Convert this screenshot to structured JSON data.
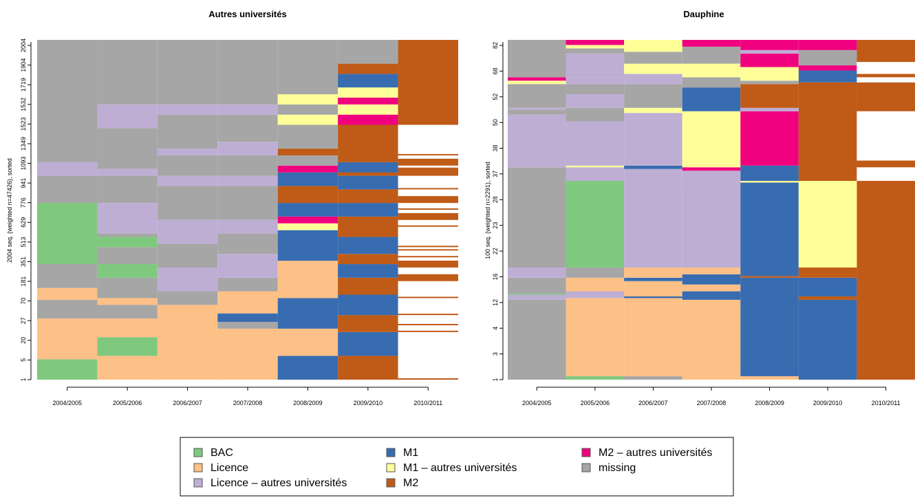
{
  "chart_data": [
    {
      "type": "sequence_index_plot",
      "title": "Autres universités",
      "ylabel": "2004 seq. (weighted n=47426), sorted",
      "xlabel": "",
      "x": [
        "2004/2005",
        "2005/2006",
        "2006/2007",
        "2007/2008",
        "2008/2009",
        "2009/2010",
        "2010/2011"
      ],
      "y_ticks": [
        1,
        5,
        20,
        27,
        70,
        181,
        351,
        513,
        629,
        776,
        941,
        1093,
        1349,
        1523,
        1532,
        1719,
        1904,
        2004
      ],
      "columns": [
        [
          [
            "BAC",
            0,
            0.06
          ],
          [
            "Licence",
            0,
            0.18
          ],
          [
            "missing",
            0,
            0.235
          ],
          [
            "Licence",
            0,
            0.27
          ],
          [
            "missing",
            0,
            0.4
          ],
          [
            "BAC",
            0,
            0.425
          ],
          [
            "missing",
            0,
            0.44
          ],
          [
            "BAC",
            0,
            0.46
          ],
          [
            "missing",
            0,
            0.52
          ],
          [
            "BAC",
            0,
            0.34
          ],
          [
            "missing",
            0,
            0.6
          ],
          [
            "Licence - autres universités",
            0,
            0.64
          ],
          [
            "missing",
            0,
            1
          ]
        ],
        [
          [
            "Licence",
            0,
            0.07
          ],
          [
            "BAC",
            0,
            0.125
          ],
          [
            "Licence",
            0,
            0.18
          ],
          [
            "missing",
            0,
            0.22
          ],
          [
            "Licence",
            0,
            0.24
          ],
          [
            "missing",
            0,
            0.3
          ],
          [
            "BAC",
            0,
            0.34
          ],
          [
            "missing",
            0,
            0.39
          ],
          [
            "BAC",
            0,
            0.42
          ],
          [
            "missing",
            0,
            0.43
          ],
          [
            "Licence - autres universités",
            0,
            0.52
          ],
          [
            "missing",
            0,
            0.6
          ],
          [
            "Licence - autres universités",
            0,
            0.62
          ],
          [
            "missing",
            0,
            0.74
          ],
          [
            "Licence - autres universités",
            0,
            0.81
          ],
          [
            "missing",
            0,
            1
          ]
        ],
        [
          [
            "Licence",
            0,
            0.22
          ],
          [
            "missing",
            0,
            0.26
          ],
          [
            "Licence - autres universités",
            0,
            0.33
          ],
          [
            "missing",
            0,
            0.4
          ],
          [
            "Licence - autres universités",
            0,
            0.47
          ],
          [
            "missing",
            0,
            0.57
          ],
          [
            "Licence - autres universités",
            0,
            0.6
          ],
          [
            "missing",
            0,
            0.66
          ],
          [
            "Licence - autres universités",
            0,
            0.68
          ],
          [
            "missing",
            0,
            0.78
          ],
          [
            "Licence - autres universités",
            0,
            0.81
          ],
          [
            "missing",
            0,
            1
          ]
        ],
        [
          [
            "Licence",
            0,
            0.15
          ],
          [
            "missing",
            0,
            0.17
          ],
          [
            "M1",
            0,
            0.195
          ],
          [
            "Licence",
            0,
            0.26
          ],
          [
            "missing",
            0,
            0.3
          ],
          [
            "Licence - autres universités",
            0,
            0.37
          ],
          [
            "missing",
            0,
            0.43
          ],
          [
            "Licence - autres universités",
            0,
            0.47
          ],
          [
            "missing",
            0,
            0.57
          ],
          [
            "Licence - autres universités",
            0,
            0.6
          ],
          [
            "missing",
            0,
            0.66
          ],
          [
            "Licence - autres universités",
            0,
            0.7
          ],
          [
            "missing",
            0,
            0.78
          ],
          [
            "Licence - autres universités",
            0,
            0.81
          ],
          [
            "missing",
            0,
            1
          ]
        ],
        [
          [
            "M1",
            0,
            0.07
          ],
          [
            "Licence",
            0,
            0.15
          ],
          [
            "M1",
            0,
            0.24
          ],
          [
            "Licence",
            0,
            0.35
          ],
          [
            "M1",
            0,
            0.44
          ],
          [
            "M1 - autres universités",
            0,
            0.46
          ],
          [
            "M2 - autres universités",
            0,
            0.48
          ],
          [
            "M1",
            0,
            0.52
          ],
          [
            "M2",
            0,
            0.57
          ],
          [
            "M1",
            0,
            0.61
          ],
          [
            "M2 - autres universités",
            0,
            0.63
          ],
          [
            "missing",
            0,
            0.66
          ],
          [
            "M2",
            0,
            0.68
          ],
          [
            "missing",
            0,
            0.75
          ],
          [
            "M1 - autres universités",
            0,
            0.78
          ],
          [
            "missing",
            0,
            0.81
          ],
          [
            "M1 - autres universités",
            0,
            0.84
          ],
          [
            "missing",
            0,
            1
          ]
        ],
        [
          [
            "M2",
            0,
            0.07
          ],
          [
            "M1",
            0,
            0.14
          ],
          [
            "M2",
            0,
            0.19
          ],
          [
            "M1",
            0,
            0.25
          ],
          [
            "M2",
            0,
            0.3
          ],
          [
            "M1",
            0,
            0.34
          ],
          [
            "M2",
            0,
            0.37
          ],
          [
            "M1",
            0,
            0.42
          ],
          [
            "M2",
            0,
            0.48
          ],
          [
            "M1",
            0,
            0.52
          ],
          [
            "M2",
            0,
            0.56
          ],
          [
            "M1",
            0,
            0.6
          ],
          [
            "M2",
            0,
            0.64
          ],
          [
            "M1",
            0,
            0.61
          ],
          [
            "M2",
            0,
            0.75
          ],
          [
            "M2 - autres universités",
            0,
            0.78
          ],
          [
            "M1 - autres universités",
            0,
            0.81
          ],
          [
            "M2 - autres universités",
            0,
            0.83
          ],
          [
            "M1 - autres universités",
            0,
            0.86
          ],
          [
            "M1",
            0,
            0.9
          ],
          [
            "M2",
            0,
            0.93
          ],
          [
            "missing",
            0,
            1
          ]
        ]
      ],
      "col7": {
        "fill": "M2",
        "top": 0.75,
        "stripes": [
          0.0,
          0.14,
          0.16,
          0.19,
          0.24,
          0.29,
          0.33,
          0.34,
          0.36,
          0.38,
          0.39,
          0.45,
          0.47,
          0.48,
          0.5,
          0.52,
          0.56,
          0.6,
          0.62,
          0.63,
          0.66
        ]
      }
    },
    {
      "type": "sequence_index_plot",
      "title": "Dauphine",
      "ylabel": "100 seq. (weighted n=2291), sorted",
      "xlabel": "",
      "x": [
        "2004/2005",
        "2005/2006",
        "2006/2007",
        "2007/2008",
        "2008/2009",
        "2009/2010",
        "2010/2011"
      ],
      "y_ticks": [
        1,
        3,
        4,
        12,
        16,
        22,
        23,
        28,
        37,
        38,
        50,
        52,
        68,
        82
      ],
      "columns": [
        [
          [
            "missing",
            0,
            0.235
          ],
          [
            "Licence - autres universités",
            0,
            0.25
          ],
          [
            "BAC",
            0,
            0.253
          ],
          [
            "missing",
            0,
            0.3
          ],
          [
            "Licence - autres universités",
            0,
            0.33
          ],
          [
            "missing",
            0,
            0.625
          ],
          [
            "Licence - autres universités",
            0,
            0.78
          ],
          [
            "missing",
            0,
            0.795
          ],
          [
            "Licence - autres universités",
            0,
            0.8
          ],
          [
            "missing",
            0,
            0.87
          ],
          [
            "M1 - autres universités",
            0,
            0.88
          ],
          [
            "M2 - autres universités",
            0,
            0.89
          ],
          [
            "missing",
            0,
            1
          ]
        ],
        [
          [
            "BAC",
            0,
            0.01
          ],
          [
            "Licence",
            0,
            0.24
          ],
          [
            "Licence - autres universités",
            0,
            0.26
          ],
          [
            "Licence",
            0,
            0.3
          ],
          [
            "missing",
            0,
            0.33
          ],
          [
            "BAC",
            0,
            0.585
          ],
          [
            "Licence - autres universités",
            0,
            0.625
          ],
          [
            "M1 - autres universités",
            0,
            0.63
          ],
          [
            "Licence - autres universités",
            0,
            0.76
          ],
          [
            "missing",
            0,
            0.8
          ],
          [
            "Licence - autres universités",
            0,
            0.84
          ],
          [
            "missing",
            0,
            0.87
          ],
          [
            "Licence - autres universités",
            0,
            0.89
          ],
          [
            "Licence - autres universités",
            0,
            0.915
          ],
          [
            "Licence - autres universités",
            0,
            0.96
          ],
          [
            "missing",
            0,
            0.975
          ],
          [
            "M1 - autres universités",
            0,
            0.985
          ],
          [
            "M2 - autres universités",
            0,
            1
          ]
        ],
        [
          [
            "missing",
            0,
            0.01
          ],
          [
            "Licence",
            0,
            0.24
          ],
          [
            "M1",
            0,
            0.245
          ],
          [
            "Licence",
            0,
            0.25
          ],
          [
            "Licence",
            0,
            0.29
          ],
          [
            "M1",
            0,
            0.3
          ],
          [
            "Licence",
            0,
            0.33
          ],
          [
            "Licence - autres universités",
            0,
            0.575
          ],
          [
            "Licence - autres universités",
            0,
            0.62
          ],
          [
            "M1",
            0,
            0.63
          ],
          [
            "Licence - autres universités",
            0,
            0.785
          ],
          [
            "M1 - autres universités",
            0,
            0.8
          ],
          [
            "missing",
            0,
            0.87
          ],
          [
            "Licence - autres universités",
            0,
            0.9
          ],
          [
            "M1 - autres universités",
            0,
            0.93
          ],
          [
            "missing",
            0,
            0.965
          ],
          [
            "M1 - autres universités",
            0,
            1
          ]
        ],
        [
          [
            "Licence",
            0,
            0.235
          ],
          [
            "M1",
            0,
            0.26
          ],
          [
            "Licence",
            0,
            0.28
          ],
          [
            "M1",
            0,
            0.31
          ],
          [
            "Licence",
            0,
            0.33
          ],
          [
            "Licence - autres universités",
            0,
            0.615
          ],
          [
            "M2 - autres universités",
            0,
            0.625
          ],
          [
            "M1 - autres universités",
            0,
            0.79
          ],
          [
            "M1",
            0,
            0.86
          ],
          [
            "missing",
            0,
            0.89
          ],
          [
            "M1 - autres universités",
            0,
            0.93
          ],
          [
            "missing",
            0,
            0.98
          ],
          [
            "M2 - autres universités",
            0,
            1
          ]
        ],
        [
          [
            "Licence",
            0,
            0.01
          ],
          [
            "M1",
            0,
            0.3
          ],
          [
            "M2",
            0,
            0.305
          ],
          [
            "M1",
            0,
            0.58
          ],
          [
            "M1 - autres universités",
            0,
            0.585
          ],
          [
            "M1",
            0,
            0.63
          ],
          [
            "M2 - autres universités",
            0,
            0.79
          ],
          [
            "Licence - autres universités",
            0,
            0.8
          ],
          [
            "M2",
            0,
            0.87
          ],
          [
            "missing",
            0,
            0.88
          ],
          [
            "M1 - autres universités",
            0,
            0.92
          ],
          [
            "M2 - autres universités",
            0,
            0.96
          ],
          [
            "Licence - autres universités",
            0,
            0.97
          ],
          [
            "M2 - autres universités",
            0,
            1
          ]
        ],
        [
          [
            "M1",
            0,
            0.235
          ],
          [
            "M2",
            0,
            0.245
          ],
          [
            "M1",
            0,
            0.3
          ],
          [
            "M2",
            0,
            0.33
          ],
          [
            "M1 - autres universités",
            0,
            0.585
          ],
          [
            "M2",
            0,
            0.875
          ],
          [
            "M1",
            0,
            0.91
          ],
          [
            "M2 - autres universités",
            0,
            0.925
          ],
          [
            "missing",
            0,
            0.97
          ],
          [
            "M2 - autres universités",
            0,
            1
          ]
        ],
        [
          [
            "M2",
            0,
            0.585
          ],
          [
            "white",
            0,
            0.625
          ],
          [
            "M2",
            0,
            0.645
          ],
          [
            "white",
            0,
            0.79
          ],
          [
            "M2",
            0,
            0.875
          ],
          [
            "white",
            0,
            0.89
          ],
          [
            "M2",
            0,
            0.9
          ],
          [
            "white",
            0,
            0.935
          ],
          [
            "M2",
            0,
            1
          ]
        ]
      ]
    }
  ],
  "legend": [
    {
      "label": "BAC",
      "color": "#7fc97f"
    },
    {
      "label": "Licence",
      "color": "#fdc086"
    },
    {
      "label": "Licence – autres universités",
      "color": "#beaed4"
    },
    {
      "label": "M1",
      "color": "#386cb0"
    },
    {
      "label": "M1 – autres universités",
      "color": "#ffff99"
    },
    {
      "label": "M2",
      "color": "#bf5b17"
    },
    {
      "label": "M2 – autres universités",
      "color": "#f0027f"
    },
    {
      "label": "missing",
      "color": "#a6a6a6"
    }
  ],
  "colors": {
    "BAC": "#7fc97f",
    "Licence": "#fdc086",
    "Licence - autres universités": "#beaed4",
    "M1": "#386cb0",
    "M1 - autres universités": "#ffff99",
    "M2": "#bf5b17",
    "M2 - autres universités": "#f0027f",
    "missing": "#a6a6a6",
    "white": "#ffffff"
  }
}
